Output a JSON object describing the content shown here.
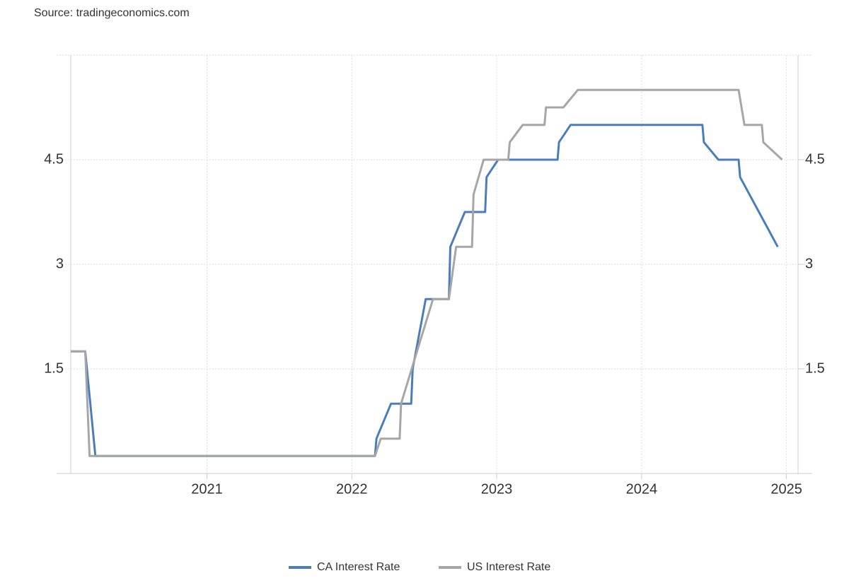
{
  "chart_data": {
    "type": "line",
    "source": "Source: tradingeconomics.com",
    "xlim": [
      2020.06,
      2025.08
    ],
    "xticks": [
      2021,
      2022,
      2023,
      2024,
      2025
    ],
    "ylim": [
      0,
      6
    ],
    "yticks": [
      1.5,
      3,
      4.5
    ],
    "y2lim": [
      0,
      6
    ],
    "y2ticks": [
      1.5,
      3,
      4.5
    ],
    "grid": true,
    "legend": "bottom",
    "series": [
      {
        "name": "CA Interest Rate",
        "color": "#4a7ebb",
        "x": [
          2020.06,
          2020.16,
          2020.23,
          2022.16,
          2022.17,
          2022.27,
          2022.41,
          2022.42,
          2022.51,
          2022.67,
          2022.68,
          2022.78,
          2022.92,
          2022.93,
          2023.01,
          2023.42,
          2023.43,
          2023.51,
          2024.42,
          2024.43,
          2024.53,
          2024.67,
          2024.68,
          2024.81,
          2024.94
        ],
        "values": [
          1.75,
          1.75,
          0.25,
          0.25,
          0.5,
          1.0,
          1.0,
          1.5,
          2.5,
          2.5,
          3.25,
          3.75,
          3.75,
          4.25,
          4.5,
          4.5,
          4.75,
          5.0,
          5.0,
          4.75,
          4.5,
          4.5,
          4.25,
          3.75,
          3.25
        ]
      },
      {
        "name": "US Interest Rate",
        "color": "#a6a6a6",
        "x": [
          2020.06,
          2020.16,
          2020.19,
          2022.16,
          2022.2,
          2022.33,
          2022.34,
          2022.45,
          2022.56,
          2022.67,
          2022.72,
          2022.83,
          2022.84,
          2022.91,
          2023.08,
          2023.09,
          2023.18,
          2023.33,
          2023.34,
          2023.46,
          2023.56,
          2024.67,
          2024.71,
          2024.83,
          2024.84,
          2024.97
        ],
        "values": [
          1.75,
          1.75,
          0.25,
          0.25,
          0.5,
          0.5,
          1.0,
          1.75,
          2.5,
          2.5,
          3.25,
          3.25,
          4.0,
          4.5,
          4.5,
          4.75,
          5.0,
          5.0,
          5.25,
          5.25,
          5.5,
          5.5,
          5.0,
          5.0,
          4.75,
          4.5
        ]
      }
    ]
  }
}
